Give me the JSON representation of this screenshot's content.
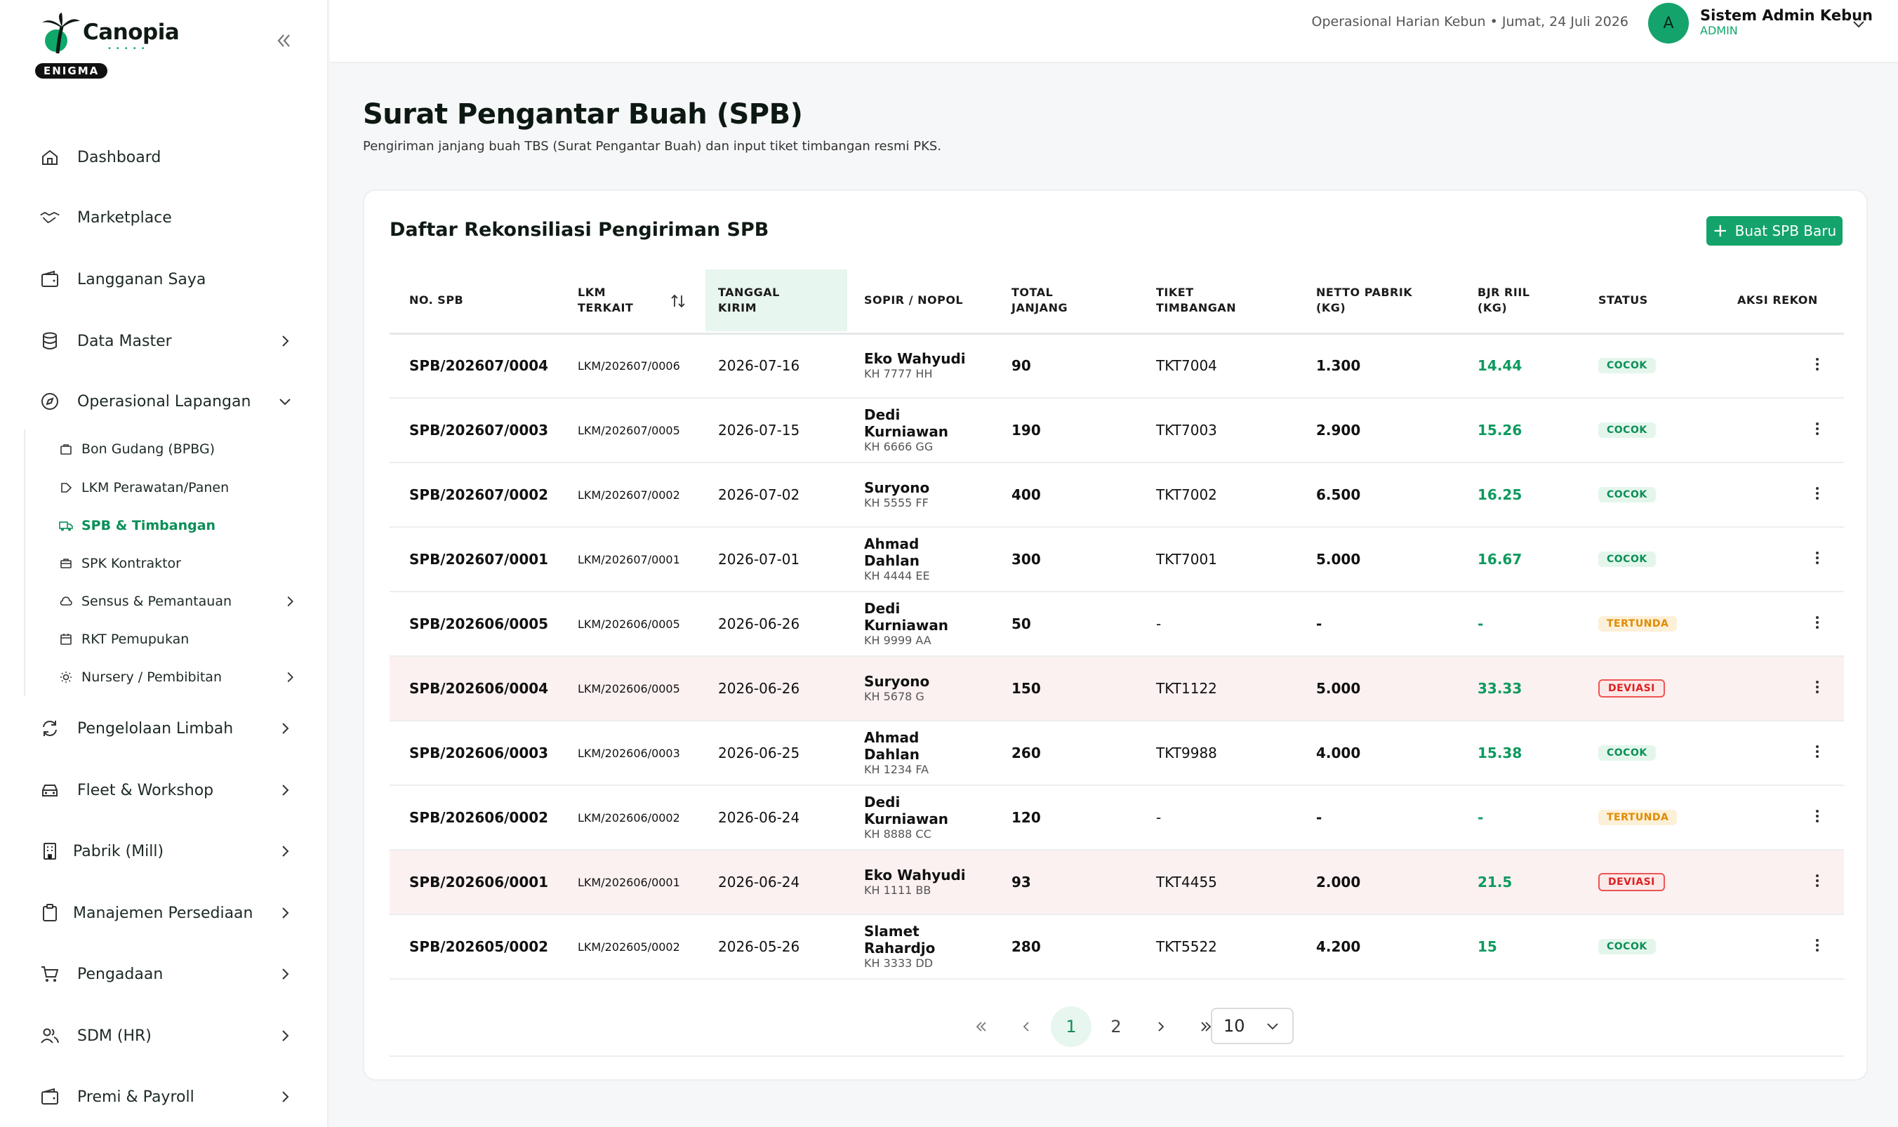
{
  "brand": {
    "name": "Canopia",
    "badge": "ENIGMA"
  },
  "sidebar": {
    "items": [
      {
        "label": "Dashboard",
        "icon": "home-icon"
      },
      {
        "label": "Marketplace",
        "icon": "handshake-icon"
      },
      {
        "label": "Langganan Saya",
        "icon": "wallet-icon"
      },
      {
        "label": "Data Master",
        "icon": "database-icon"
      },
      {
        "label": "Operasional Lapangan",
        "icon": "compass-icon"
      },
      {
        "label": "Pengelolaan Limbah",
        "icon": "recycle-icon"
      },
      {
        "label": "Fleet & Workshop",
        "icon": "car-icon"
      },
      {
        "label": "Pabrik (Mill)",
        "icon": "building-icon"
      },
      {
        "label": "Manajemen Persediaan",
        "icon": "clipboard-icon"
      },
      {
        "label": "Pengadaan",
        "icon": "cart-icon"
      },
      {
        "label": "SDM (HR)",
        "icon": "users-icon"
      },
      {
        "label": "Premi & Payroll",
        "icon": "wallet-icon"
      }
    ],
    "sub_items": [
      {
        "label": "Bon Gudang (BPBG)",
        "icon": "bag-icon"
      },
      {
        "label": "LKM Perawatan/Panen",
        "icon": "tag-icon"
      },
      {
        "label": "SPB & Timbangan",
        "icon": "truck-icon",
        "active": true
      },
      {
        "label": "SPK Kontraktor",
        "icon": "briefcase-icon"
      },
      {
        "label": "Sensus & Pemantauan",
        "icon": "cloud-icon"
      },
      {
        "label": "RKT Pemupukan",
        "icon": "calendar-icon"
      },
      {
        "label": "Nursery / Pembibitan",
        "icon": "sun-icon"
      }
    ]
  },
  "header": {
    "context": "Operasional Harian Kebun  •  Jumat, 24 Juli 2026",
    "avatar_initial": "A",
    "user_name": "Sistem Admin Kebun",
    "user_role": "ADMIN"
  },
  "page": {
    "title": "Surat Pengantar Buah (SPB)",
    "subtitle": "Pengiriman janjang buah TBS (Surat Pengantar Buah) dan input tiket timbangan resmi PKS."
  },
  "card": {
    "title": "Daftar Rekonsiliasi Pengiriman SPB",
    "new_button": "Buat SPB Baru"
  },
  "table": {
    "headers": {
      "spb": "NO. SPB",
      "lkm": "LKM\nTERKAIT",
      "date": "TANGGAL\nKIRIM",
      "sopir": "SOPIR / NOPOL",
      "janjang": "TOTAL\nJANJANG",
      "tiket": "TIKET\nTIMBANGAN",
      "netto": "NETTO PABRIK\n(KG)",
      "bjr": "BJR RIIL\n(KG)",
      "status": "STATUS",
      "aksi": "AKSI REKON"
    },
    "rows": [
      {
        "spb": "SPB/202607/0004",
        "lkm": "LKM/202607/0006",
        "date": "2026-07-16",
        "sopir": "Eko Wahyudi",
        "nopol": "KH 7777 HH",
        "janjang": "90",
        "tiket": "TKT7004",
        "netto": "1.300",
        "bjr": "14.44",
        "status": "COCOK",
        "status_type": "cocok"
      },
      {
        "spb": "SPB/202607/0003",
        "lkm": "LKM/202607/0005",
        "date": "2026-07-15",
        "sopir": "Dedi Kurniawan",
        "nopol": "KH 6666 GG",
        "janjang": "190",
        "tiket": "TKT7003",
        "netto": "2.900",
        "bjr": "15.26",
        "status": "COCOK",
        "status_type": "cocok"
      },
      {
        "spb": "SPB/202607/0002",
        "lkm": "LKM/202607/0002",
        "date": "2026-07-02",
        "sopir": "Suryono",
        "nopol": "KH 5555 FF",
        "janjang": "400",
        "tiket": "TKT7002",
        "netto": "6.500",
        "bjr": "16.25",
        "status": "COCOK",
        "status_type": "cocok"
      },
      {
        "spb": "SPB/202607/0001",
        "lkm": "LKM/202607/0001",
        "date": "2026-07-01",
        "sopir": "Ahmad Dahlan",
        "nopol": "KH 4444 EE",
        "janjang": "300",
        "tiket": "TKT7001",
        "netto": "5.000",
        "bjr": "16.67",
        "status": "COCOK",
        "status_type": "cocok"
      },
      {
        "spb": "SPB/202606/0005",
        "lkm": "LKM/202606/0005",
        "date": "2026-06-26",
        "sopir": "Dedi Kurniawan",
        "nopol": "KH 9999 AA",
        "janjang": "50",
        "tiket": "-",
        "netto": "-",
        "bjr": "-",
        "status": "TERTUNDA",
        "status_type": "tertunda"
      },
      {
        "spb": "SPB/202606/0004",
        "lkm": "LKM/202606/0005",
        "date": "2026-06-26",
        "sopir": "Suryono",
        "nopol": "KH 5678 G",
        "janjang": "150",
        "tiket": "TKT1122",
        "netto": "5.000",
        "bjr": "33.33",
        "status": "DEVIASI",
        "status_type": "deviasi"
      },
      {
        "spb": "SPB/202606/0003",
        "lkm": "LKM/202606/0003",
        "date": "2026-06-25",
        "sopir": "Ahmad Dahlan",
        "nopol": "KH 1234 FA",
        "janjang": "260",
        "tiket": "TKT9988",
        "netto": "4.000",
        "bjr": "15.38",
        "status": "COCOK",
        "status_type": "cocok"
      },
      {
        "spb": "SPB/202606/0002",
        "lkm": "LKM/202606/0002",
        "date": "2026-06-24",
        "sopir": "Dedi Kurniawan",
        "nopol": "KH 8888 CC",
        "janjang": "120",
        "tiket": "-",
        "netto": "-",
        "bjr": "-",
        "status": "TERTUNDA",
        "status_type": "tertunda"
      },
      {
        "spb": "SPB/202606/0001",
        "lkm": "LKM/202606/0001",
        "date": "2026-06-24",
        "sopir": "Eko Wahyudi",
        "nopol": "KH 1111 BB",
        "janjang": "93",
        "tiket": "TKT4455",
        "netto": "2.000",
        "bjr": "21.5",
        "status": "DEVIASI",
        "status_type": "deviasi"
      },
      {
        "spb": "SPB/202605/0002",
        "lkm": "LKM/202605/0002",
        "date": "2026-05-26",
        "sopir": "Slamet Rahardjo",
        "nopol": "KH 3333 DD",
        "janjang": "280",
        "tiket": "TKT5522",
        "netto": "4.200",
        "bjr": "15",
        "status": "COCOK",
        "status_type": "cocok"
      }
    ]
  },
  "pagination": {
    "pages": [
      "1",
      "2"
    ],
    "current": "1",
    "page_size": "10"
  },
  "colors": {
    "accent": "#14a46b",
    "deviasi_row": "#fcf1f1",
    "status_cocok": "#0c8f55",
    "status_tertunda": "#e08a00",
    "status_deviasi": "#dd2222"
  }
}
